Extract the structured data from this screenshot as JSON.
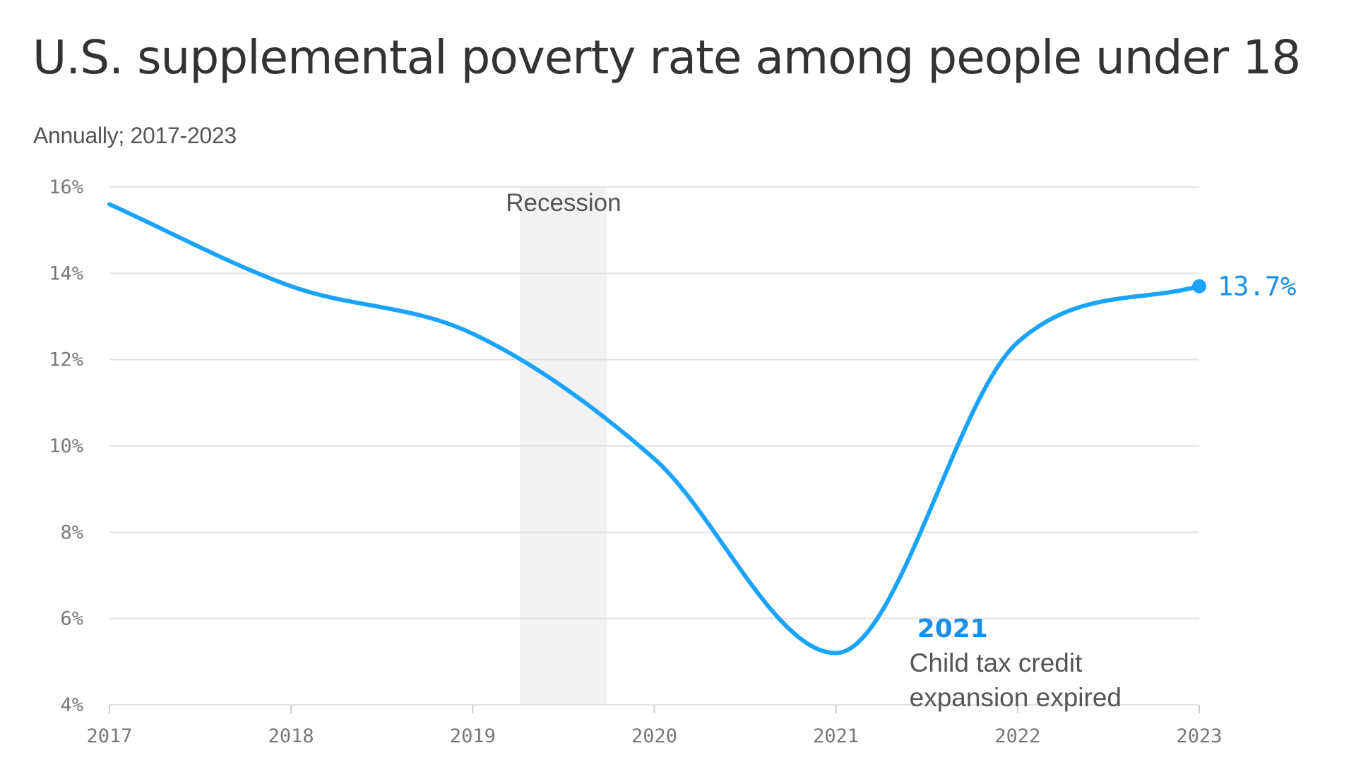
{
  "title": "U.S. supplemental poverty rate among people under 18",
  "subtitle": "Annually; 2017-2023",
  "colors": {
    "line": "#1aa3ff",
    "accent_text": "#1a8fe3",
    "grid": "#e3e3e3",
    "recession_band": "#f2f2f2"
  },
  "chart_data": {
    "type": "line",
    "title": "U.S. supplemental poverty rate among people under 18",
    "subtitle": "Annually; 2017-2023",
    "xlabel": "",
    "ylabel": "",
    "xlim": [
      2017,
      2023
    ],
    "ylim": [
      4,
      16
    ],
    "grid": true,
    "y_ticks": [
      4,
      6,
      8,
      10,
      12,
      14,
      16
    ],
    "y_tick_labels": [
      "4%",
      "6%",
      "8%",
      "10%",
      "12%",
      "14%",
      "16%"
    ],
    "x_ticks": [
      2017,
      2018,
      2019,
      2020,
      2021,
      2022,
      2023
    ],
    "x_tick_labels": [
      "2017",
      "2018",
      "2019",
      "2020",
      "2021",
      "2022",
      "2023"
    ],
    "series": [
      {
        "name": "Supplemental poverty rate, under 18",
        "x": [
          2017,
          2018,
          2019,
          2020,
          2021,
          2022,
          2023
        ],
        "values": [
          15.6,
          13.7,
          12.6,
          9.7,
          5.2,
          12.4,
          13.7
        ]
      }
    ],
    "shaded_ranges": [
      {
        "label": "Recession",
        "start": 2019.26,
        "end": 2019.74
      }
    ],
    "end_label": "13.7%",
    "annotations": [
      {
        "x": 2021,
        "year_label": "2021",
        "text_lines": [
          "Child tax credit",
          "expansion expired"
        ]
      }
    ]
  }
}
